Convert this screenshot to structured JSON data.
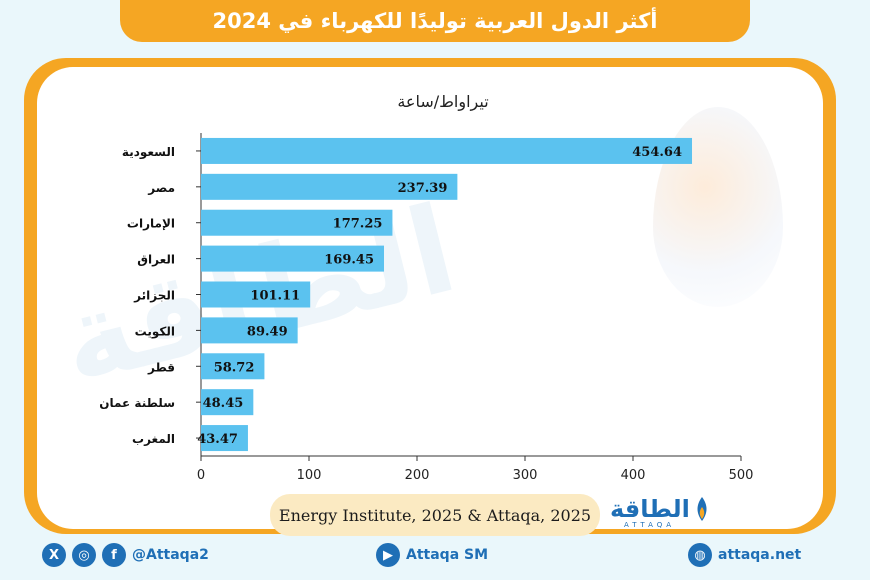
{
  "title": "أكثر الدول العربية توليدًا للكهرباء في 2024",
  "source": "Energy Institute, 2025 & Attaqa, 2025",
  "logo": {
    "name": "الطاقة",
    "latin": "ATTAQA"
  },
  "watermark": "الطاقة",
  "footer": {
    "social_handle": "@Attaqa2",
    "youtube": "Attaqa SM",
    "website": "attaqa.net"
  },
  "colors": {
    "bar": "#5bc2ef",
    "accent": "#f5a623",
    "brand": "#1f6fb6"
  },
  "chart_data": {
    "type": "bar",
    "orientation": "horizontal",
    "title": "تيراواط/ساعة",
    "categories": [
      "السعودية",
      "مصر",
      "الإمارات",
      "العراق",
      "الجزائر",
      "الكويت",
      "قطر",
      "سلطنة عمان",
      "المغرب"
    ],
    "values": [
      454.64,
      237.39,
      177.25,
      169.45,
      101.11,
      89.49,
      58.72,
      48.45,
      43.47
    ],
    "value_labels": [
      "454.64",
      "237.39",
      "177.25",
      "169.45",
      "101.11",
      "89.49",
      "58.72",
      "48.45",
      "43.47"
    ],
    "xlim": [
      0,
      500
    ],
    "xticks": [
      "0",
      "100",
      "200",
      "300",
      "400",
      "500"
    ]
  }
}
